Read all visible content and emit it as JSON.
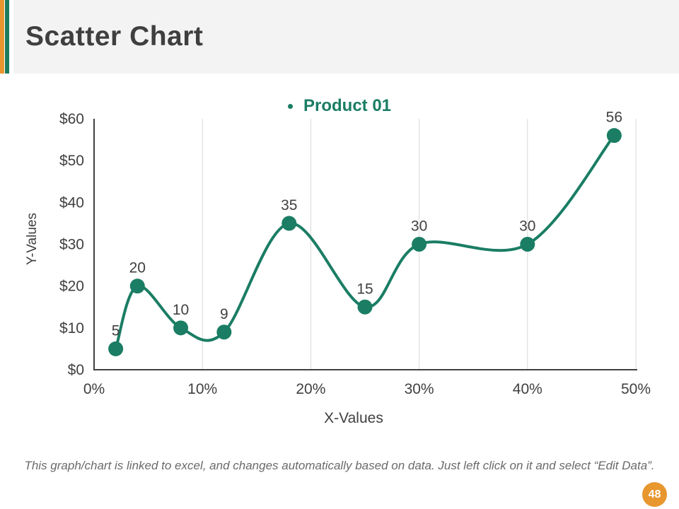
{
  "slide": {
    "title": "Scatter Chart",
    "page_number": "48",
    "footer_note": "This graph/chart is linked to excel, and changes automatically based on data. Just left click on it and select “Edit Data”."
  },
  "colors": {
    "accent_orange": "#E8962E",
    "accent_green": "#1B7B5C",
    "series_teal": "#1A7D64",
    "title_text": "#3F3F3F",
    "axis_text": "#404040",
    "gridline": "#D9D9D9",
    "axis_line": "#404040",
    "footer_text": "#6A6A6A",
    "header_bg": "#F3F3F4",
    "badge_orange": "#E8962E"
  },
  "chart_data": {
    "type": "scatter",
    "title": "",
    "xlabel": "X-Values",
    "ylabel": "Y-Values",
    "xlim": [
      0,
      50
    ],
    "ylim": [
      0,
      60
    ],
    "grid": "vertical-only",
    "legend_position": "top-center",
    "x_ticks": [
      {
        "value": 0,
        "label": "0%"
      },
      {
        "value": 10,
        "label": "10%"
      },
      {
        "value": 20,
        "label": "20%"
      },
      {
        "value": 30,
        "label": "30%"
      },
      {
        "value": 40,
        "label": "40%"
      },
      {
        "value": 50,
        "label": "50%"
      }
    ],
    "y_ticks": [
      {
        "value": 0,
        "label": "$0"
      },
      {
        "value": 10,
        "label": "$10"
      },
      {
        "value": 20,
        "label": "$20"
      },
      {
        "value": 30,
        "label": "$30"
      },
      {
        "value": 40,
        "label": "$40"
      },
      {
        "value": 50,
        "label": "$50"
      },
      {
        "value": 60,
        "label": "$60"
      }
    ],
    "series": [
      {
        "name": "Product 01",
        "color": "#1A7D64",
        "marker": "circle",
        "smooth": true,
        "points": [
          {
            "x": 2,
            "y": 5,
            "label": "5"
          },
          {
            "x": 4,
            "y": 20,
            "label": "20"
          },
          {
            "x": 8,
            "y": 10,
            "label": "10"
          },
          {
            "x": 12,
            "y": 9,
            "label": "9"
          },
          {
            "x": 18,
            "y": 35,
            "label": "35"
          },
          {
            "x": 25,
            "y": 15,
            "label": "15"
          },
          {
            "x": 30,
            "y": 30,
            "label": "30"
          },
          {
            "x": 40,
            "y": 30,
            "label": "30"
          },
          {
            "x": 48,
            "y": 56,
            "label": "56"
          }
        ]
      }
    ]
  }
}
